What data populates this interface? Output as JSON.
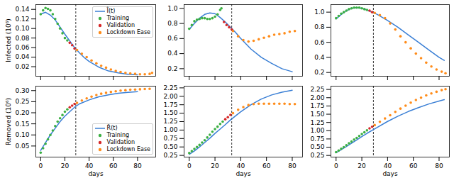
{
  "chart_data": [
    {
      "type": "line",
      "ylabel": "Infected (10⁶)",
      "tick_labels": "y",
      "legend": "upper right",
      "xlim": [
        -4,
        95
      ],
      "xticks": [
        0,
        20,
        40,
        60,
        80
      ],
      "ylim": [
        0,
        0.15
      ],
      "yticks": [
        0.02,
        0.04,
        0.06,
        0.08,
        {
          "value": 0.1,
          "label": "0.10"
        },
        0.12,
        0.14
      ],
      "vline": 29,
      "series": [
        {
          "name": "Î(t)",
          "type": "line",
          "color": "#3a7fd5",
          "x": [
            0,
            4,
            8,
            12,
            16,
            20,
            24,
            28,
            32,
            36,
            40,
            48,
            56,
            64,
            72,
            80
          ],
          "values": [
            0.13,
            0.134,
            0.128,
            0.118,
            0.103,
            0.088,
            0.074,
            0.06,
            0.049,
            0.039,
            0.031,
            0.019,
            0.011,
            0.007,
            0.004,
            0.003
          ]
        },
        {
          "name": "Training",
          "type": "scatter",
          "color": "#3cb043",
          "x": [
            0,
            2,
            4,
            6,
            8,
            10,
            12,
            14,
            16,
            18,
            20,
            22
          ],
          "values": [
            0.13,
            0.138,
            0.143,
            0.141,
            0.138,
            0.13,
            0.12,
            0.11,
            0.1,
            0.09,
            0.08,
            0.075
          ]
        },
        {
          "name": "Validation",
          "type": "scatter",
          "color": "#d62728",
          "x": [
            24,
            26,
            28
          ],
          "values": [
            0.07,
            0.065,
            0.058
          ]
        },
        {
          "name": "Lockdown Ease",
          "type": "scatter",
          "color": "#ff8c1a",
          "x": [
            30,
            34,
            38,
            42,
            46,
            50,
            54,
            58,
            62,
            66,
            70,
            74,
            78,
            82,
            86,
            90,
            92
          ],
          "values": [
            0.055,
            0.047,
            0.04,
            0.033,
            0.027,
            0.022,
            0.018,
            0.014,
            0.011,
            0.009,
            0.007,
            0.006,
            0.005,
            0.004,
            0.004,
            0.005,
            0.007
          ]
        }
      ]
    },
    {
      "type": "line",
      "tick_labels": "y",
      "xlim": [
        -4,
        88
      ],
      "xticks": [
        0,
        20,
        40,
        60,
        80
      ],
      "ylim": [
        0.1,
        1.05
      ],
      "yticks": [
        0.2,
        0.4,
        0.6,
        0.8,
        {
          "value": 1,
          "label": "1.0"
        }
      ],
      "vline": 33,
      "series": [
        {
          "name": "Î(t)",
          "type": "line",
          "color": "#3a7fd5",
          "x": [
            0,
            4,
            8,
            12,
            16,
            20,
            24,
            28,
            32,
            36,
            40,
            48,
            56,
            64,
            72,
            80
          ],
          "values": [
            0.72,
            0.8,
            0.87,
            0.92,
            0.94,
            0.93,
            0.88,
            0.82,
            0.75,
            0.68,
            0.6,
            0.46,
            0.35,
            0.27,
            0.2,
            0.16
          ]
        },
        {
          "name": "Training",
          "type": "scatter",
          "color": "#3cb043",
          "x": [
            0,
            2,
            4,
            6,
            8,
            10,
            12,
            14,
            16,
            18,
            20,
            22,
            24,
            25
          ],
          "values": [
            0.73,
            0.78,
            0.83,
            0.85,
            0.86,
            0.87,
            0.87,
            0.86,
            0.86,
            0.87,
            0.89,
            0.92,
            0.98,
            1.0
          ]
        },
        {
          "name": "Validation",
          "type": "scatter",
          "color": "#d62728",
          "x": [
            27,
            29,
            31,
            33
          ],
          "values": [
            0.82,
            0.78,
            0.75,
            0.72
          ]
        },
        {
          "name": "Lockdown Ease",
          "type": "scatter",
          "color": "#ff8c1a",
          "x": [
            34,
            38,
            42,
            46,
            50,
            54,
            58,
            62,
            66,
            70,
            74,
            78,
            82
          ],
          "values": [
            0.7,
            0.63,
            0.58,
            0.56,
            0.57,
            0.59,
            0.61,
            0.63,
            0.65,
            0.66,
            0.67,
            0.69,
            0.7
          ]
        }
      ]
    },
    {
      "type": "line",
      "tick_labels": "y",
      "xlim": [
        -4,
        88
      ],
      "xticks": [
        0,
        20,
        40,
        60,
        80
      ],
      "ylim": [
        0.15,
        1.1
      ],
      "yticks": [
        0.2,
        0.4,
        0.6,
        0.8,
        {
          "value": 1,
          "label": "1.0"
        }
      ],
      "vline": 29,
      "series": [
        {
          "name": "Î(t)",
          "type": "line",
          "color": "#3a7fd5",
          "x": [
            0,
            4,
            8,
            12,
            16,
            20,
            24,
            28,
            32,
            40,
            48,
            56,
            64,
            72,
            80,
            84
          ],
          "values": [
            0.91,
            0.97,
            1.02,
            1.05,
            1.06,
            1.05,
            1.03,
            1.0,
            0.97,
            0.89,
            0.8,
            0.7,
            0.6,
            0.5,
            0.4,
            0.36
          ]
        },
        {
          "name": "Training",
          "type": "scatter",
          "color": "#3cb043",
          "x": [
            0,
            2,
            4,
            6,
            8,
            10,
            12,
            14,
            16,
            18,
            20,
            22,
            24
          ],
          "values": [
            0.92,
            0.95,
            0.98,
            1.0,
            1.02,
            1.04,
            1.05,
            1.06,
            1.06,
            1.06,
            1.05,
            1.04,
            1.03
          ]
        },
        {
          "name": "Validation",
          "type": "scatter",
          "color": "#d62728",
          "x": [
            26,
            28
          ],
          "values": [
            1.02,
            1.0
          ]
        },
        {
          "name": "Lockdown Ease",
          "type": "scatter",
          "color": "#ff8c1a",
          "x": [
            30,
            34,
            38,
            42,
            46,
            50,
            54,
            58,
            62,
            66,
            70,
            74,
            78,
            82,
            85
          ],
          "values": [
            0.99,
            0.96,
            0.92,
            0.85,
            0.77,
            0.68,
            0.6,
            0.52,
            0.45,
            0.39,
            0.33,
            0.28,
            0.24,
            0.21,
            0.19
          ]
        }
      ]
    },
    {
      "type": "line",
      "ylabel": "Removed (10⁶)",
      "xlabel": "days",
      "legend": "lower right",
      "xlim": [
        -4,
        95
      ],
      "xticks": [
        0,
        20,
        40,
        60,
        80
      ],
      "ylim": [
        0,
        0.32
      ],
      "yticks": [
        {
          "value": 0.05,
          "label": "0.05"
        },
        {
          "value": 0.1,
          "label": "0.10"
        },
        {
          "value": 0.15,
          "label": "0.15"
        },
        {
          "value": 0.2,
          "label": "0.20"
        },
        {
          "value": 0.25,
          "label": "0.25"
        },
        {
          "value": 0.3,
          "label": "0.30"
        }
      ],
      "vline": 29,
      "series": [
        {
          "name": "R̂(t)",
          "type": "line",
          "color": "#3a7fd5",
          "x": [
            0,
            4,
            8,
            12,
            16,
            20,
            24,
            28,
            32,
            40,
            48,
            56,
            64,
            72,
            80
          ],
          "values": [
            0.03,
            0.065,
            0.1,
            0.13,
            0.16,
            0.185,
            0.205,
            0.225,
            0.24,
            0.258,
            0.272,
            0.281,
            0.288,
            0.292,
            0.295
          ]
        },
        {
          "name": "Training",
          "type": "scatter",
          "color": "#3cb043",
          "x": [
            0,
            2,
            4,
            6,
            8,
            10,
            12,
            14,
            16,
            18,
            20,
            22
          ],
          "values": [
            0.02,
            0.04,
            0.06,
            0.08,
            0.1,
            0.12,
            0.14,
            0.16,
            0.175,
            0.19,
            0.205,
            0.215
          ]
        },
        {
          "name": "Validation",
          "type": "scatter",
          "color": "#d62728",
          "x": [
            24,
            26,
            28
          ],
          "values": [
            0.225,
            0.232,
            0.24
          ]
        },
        {
          "name": "Lockdown Ease",
          "type": "scatter",
          "color": "#ff8c1a",
          "x": [
            30,
            34,
            38,
            42,
            46,
            50,
            54,
            58,
            62,
            66,
            70,
            74,
            78,
            82,
            86,
            90
          ],
          "values": [
            0.245,
            0.255,
            0.265,
            0.273,
            0.28,
            0.286,
            0.29,
            0.294,
            0.297,
            0.3,
            0.302,
            0.304,
            0.305,
            0.306,
            0.307,
            0.308
          ]
        }
      ]
    },
    {
      "type": "line",
      "xlabel": "days",
      "xlim": [
        -4,
        88
      ],
      "xticks": [
        0,
        20,
        40,
        60,
        80
      ],
      "ylim": [
        0.2,
        2.3
      ],
      "yticks": [
        0.25,
        {
          "value": 0.5,
          "label": "0.50"
        },
        0.75,
        {
          "value": 1,
          "label": "1.00"
        },
        1.25,
        {
          "value": 1.5,
          "label": "1.50"
        },
        1.75,
        {
          "value": 2,
          "label": "2.00"
        },
        2.25
      ],
      "vline": 33,
      "series": [
        {
          "name": "R̂(t)",
          "type": "line",
          "color": "#3a7fd5",
          "x": [
            0,
            4,
            8,
            12,
            16,
            20,
            24,
            28,
            32,
            40,
            48,
            56,
            64,
            72,
            80
          ],
          "values": [
            0.28,
            0.38,
            0.5,
            0.63,
            0.76,
            0.9,
            1.03,
            1.16,
            1.3,
            1.54,
            1.75,
            1.92,
            2.04,
            2.12,
            2.18
          ]
        },
        {
          "name": "Training",
          "type": "scatter",
          "color": "#3cb043",
          "x": [
            0,
            2,
            4,
            6,
            8,
            10,
            12,
            14,
            16,
            18,
            20,
            22,
            24,
            26
          ],
          "values": [
            0.32,
            0.38,
            0.44,
            0.5,
            0.56,
            0.63,
            0.7,
            0.78,
            0.86,
            0.95,
            1.03,
            1.1,
            1.18,
            1.25
          ]
        },
        {
          "name": "Validation",
          "type": "scatter",
          "color": "#d62728",
          "x": [
            28,
            30,
            32
          ],
          "values": [
            1.32,
            1.38,
            1.45
          ]
        },
        {
          "name": "Lockdown Ease",
          "type": "scatter",
          "color": "#ff8c1a",
          "x": [
            34,
            38,
            42,
            46,
            50,
            54,
            58,
            62,
            66,
            70,
            74,
            78,
            82
          ],
          "values": [
            1.5,
            1.6,
            1.68,
            1.74,
            1.77,
            1.78,
            1.78,
            1.78,
            1.78,
            1.78,
            1.78,
            1.77,
            1.77
          ]
        }
      ]
    },
    {
      "type": "line",
      "xlabel": "days",
      "xlim": [
        -4,
        88
      ],
      "xticks": [
        0,
        20,
        40,
        60,
        80
      ],
      "ylim": [
        0.2,
        2.35
      ],
      "yticks": [
        0.25,
        {
          "value": 0.5,
          "label": "0.50"
        },
        0.75,
        {
          "value": 1,
          "label": "1.00"
        },
        1.25,
        {
          "value": 1.5,
          "label": "1.50"
        },
        1.75,
        {
          "value": 2,
          "label": "2.00"
        },
        2.25
      ],
      "vline": 29,
      "series": [
        {
          "name": "R̂(t)",
          "type": "line",
          "color": "#3a7fd5",
          "x": [
            0,
            8,
            16,
            24,
            32,
            40,
            48,
            56,
            64,
            72,
            80,
            84
          ],
          "values": [
            0.33,
            0.52,
            0.72,
            0.92,
            1.1,
            1.28,
            1.44,
            1.58,
            1.7,
            1.81,
            1.9,
            1.94
          ]
        },
        {
          "name": "Training",
          "type": "scatter",
          "color": "#3cb043",
          "x": [
            0,
            2,
            4,
            6,
            8,
            10,
            12,
            14,
            16,
            18,
            20,
            22,
            24
          ],
          "values": [
            0.35,
            0.4,
            0.45,
            0.5,
            0.56,
            0.62,
            0.67,
            0.73,
            0.78,
            0.84,
            0.9,
            0.95,
            1.01
          ]
        },
        {
          "name": "Validation",
          "type": "scatter",
          "color": "#d62728",
          "x": [
            26,
            28
          ],
          "values": [
            1.07,
            1.12
          ]
        },
        {
          "name": "Lockdown Ease",
          "type": "scatter",
          "color": "#ff8c1a",
          "x": [
            30,
            34,
            38,
            42,
            46,
            50,
            54,
            58,
            62,
            66,
            70,
            74,
            78,
            82,
            85
          ],
          "values": [
            1.17,
            1.27,
            1.37,
            1.47,
            1.57,
            1.67,
            1.76,
            1.85,
            1.93,
            2.0,
            2.07,
            2.13,
            2.18,
            2.23,
            2.26
          ]
        }
      ]
    }
  ]
}
